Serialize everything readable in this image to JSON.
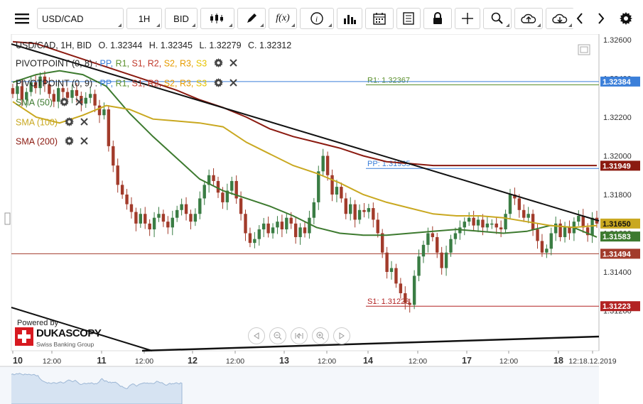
{
  "toolbar": {
    "symbol": "USD/CAD",
    "interval": "1H",
    "side": "BID",
    "fx_label": "f(x)"
  },
  "ohlc": {
    "header": "USD/CAD, 1H, BID",
    "open": "O. 1.32344",
    "high": "H. 1.32345",
    "low": "L. 1.32279",
    "close": "C. 1.32312"
  },
  "legend": {
    "pivot1": {
      "name": "PIVOTPOINT (0, 8)",
      "levels": [
        "PP",
        "R1",
        "S1",
        "R2",
        "S2",
        "R3",
        "S3"
      ]
    },
    "pivot2": {
      "name": "PIVOTPOINT (0, 9)",
      "levels": [
        "PP",
        "R1",
        "S1",
        "R2",
        "S2",
        "R3",
        "S3"
      ]
    },
    "sma50": "SMA (50)",
    "sma100": "SMA (100)",
    "sma200": "SMA (200)"
  },
  "level_colors": {
    "PP": "#3b7fd9",
    "R1": "#5a8f2a",
    "S1": "#c0392b",
    "R2": "#c0392b",
    "S2": "#e69b00",
    "R3": "#e69b00",
    "S3": "#e6c300"
  },
  "powered_by": "Powered by",
  "brand": "DUKASCOPY",
  "brand_sub": "Swiss Banking Group",
  "colors": {
    "sma50": "#3d7a2f",
    "sma100": "#c9a820",
    "sma200": "#8b1a10",
    "pp": "#3b7fd9",
    "r1": "#5a8f2a",
    "s1": "#b22222",
    "up": "#3a7d44",
    "down": "#a23b2b"
  },
  "chart_data": {
    "type": "candlestick",
    "title": "USD/CAD, 1H, BID",
    "ylim": [
      1.3112,
      1.3266
    ],
    "y_ticks": [
      "1.32600",
      "1.32400",
      "1.32200",
      "1.32000",
      "1.31800",
      "1.31600",
      "1.31400",
      "1.31200"
    ],
    "x_labels": [
      "10",
      "12:00",
      "11",
      "12:00",
      "12",
      "12:00",
      "13",
      "12:00",
      "14",
      "12:00",
      "17",
      "12:00",
      "18",
      "12:18.12.2019"
    ],
    "price_labels": [
      {
        "label": "1.32384",
        "value": 1.32384,
        "color": "#3b7fd9"
      },
      {
        "label": "1.31949",
        "value": 1.31949,
        "color": "#8b1a10"
      },
      {
        "label": "1.31650",
        "value": 1.3165,
        "color": "#c9a820",
        "text_color": "#111"
      },
      {
        "label": "1.31583",
        "value": 1.31583,
        "color": "#3d7a2f"
      },
      {
        "label": "1.31494",
        "value": 1.31494,
        "color": "#a23b2b"
      },
      {
        "label": "1.31223",
        "value": 1.31223,
        "color": "#b22222"
      }
    ],
    "pivot_levels": [
      {
        "name": "R1",
        "label": "R1: 1.32367",
        "value": 1.32367
      },
      {
        "name": "PP",
        "label": "PP: 1.31935",
        "value": 1.31935
      },
      {
        "name": "S1",
        "label": "S1: 1.31223",
        "value": 1.31223
      }
    ],
    "horizontal_line": 1.31494,
    "candles_close": [
      1.3232,
      1.3236,
      1.3229,
      1.3233,
      1.3238,
      1.3235,
      1.3241,
      1.3237,
      1.3232,
      1.3228,
      1.3235,
      1.3233,
      1.323,
      1.3234,
      1.3231,
      1.3227,
      1.323,
      1.3232,
      1.3226,
      1.3221,
      1.3224,
      1.3205,
      1.3195,
      1.3185,
      1.318,
      1.3175,
      1.3171,
      1.3165,
      1.317,
      1.3165,
      1.3162,
      1.3168,
      1.317,
      1.3166,
      1.3163,
      1.3168,
      1.3172,
      1.3175,
      1.317,
      1.3166,
      1.317,
      1.3178,
      1.3185,
      1.319,
      1.3187,
      1.3181,
      1.3176,
      1.3182,
      1.3187,
      1.3178,
      1.317,
      1.316,
      1.3155,
      1.3157,
      1.3162,
      1.3165,
      1.316,
      1.3163,
      1.3166,
      1.3162,
      1.3168,
      1.3165,
      1.3158,
      1.3163,
      1.316,
      1.3168,
      1.3176,
      1.3192,
      1.32,
      1.319,
      1.318,
      1.3184,
      1.3178,
      1.317,
      1.3175,
      1.3167,
      1.3172,
      1.3171,
      1.3173,
      1.3167,
      1.316,
      1.315,
      1.314,
      1.3142,
      1.3134,
      1.3129,
      1.3124,
      1.3123,
      1.3138,
      1.3148,
      1.3154,
      1.316,
      1.3158,
      1.315,
      1.3142,
      1.315,
      1.3157,
      1.316,
      1.3163,
      1.3166,
      1.3168,
      1.3164,
      1.3167,
      1.3163,
      1.3165,
      1.3165,
      1.3163,
      1.3162,
      1.317,
      1.318,
      1.3178,
      1.3172,
      1.3168,
      1.317,
      1.3162,
      1.3156,
      1.315,
      1.3152,
      1.316,
      1.3165,
      1.3158,
      1.3163,
      1.316,
      1.3166,
      1.3169,
      1.3163,
      1.3159,
      1.3168,
      1.3165
    ],
    "series": [
      {
        "name": "SMA (50)",
        "values": [
          1.3238,
          1.3242,
          1.3244,
          1.3242,
          1.3236,
          1.3222,
          1.321,
          1.3199,
          1.3188,
          1.3182,
          1.3178,
          1.3174,
          1.3169,
          1.3163,
          1.316,
          1.3159,
          1.3159,
          1.316,
          1.3161,
          1.3162,
          1.3161,
          1.316,
          1.3161,
          1.3164,
          1.3163,
          1.3158
        ]
      },
      {
        "name": "SMA (100)",
        "values": [
          1.3228,
          1.322,
          1.3217,
          1.3221,
          1.3226,
          1.3224,
          1.3219,
          1.3218,
          1.3217,
          1.3215,
          1.3207,
          1.3201,
          1.3195,
          1.3191,
          1.3186,
          1.318,
          1.3176,
          1.3173,
          1.317,
          1.3169,
          1.3169,
          1.3168,
          1.3166,
          1.3164,
          1.3163,
          1.3164
        ]
      },
      {
        "name": "SMA (200)",
        "values": [
          1.3259,
          1.3258,
          1.3254,
          1.325,
          1.3246,
          1.3242,
          1.3238,
          1.3234,
          1.3229,
          1.3225,
          1.322,
          1.3214,
          1.321,
          1.3207,
          1.3204,
          1.32,
          1.3197,
          1.3196,
          1.3195,
          1.3195,
          1.3195,
          1.3195,
          1.3195,
          1.3195,
          1.3195,
          1.3195
        ]
      }
    ]
  }
}
